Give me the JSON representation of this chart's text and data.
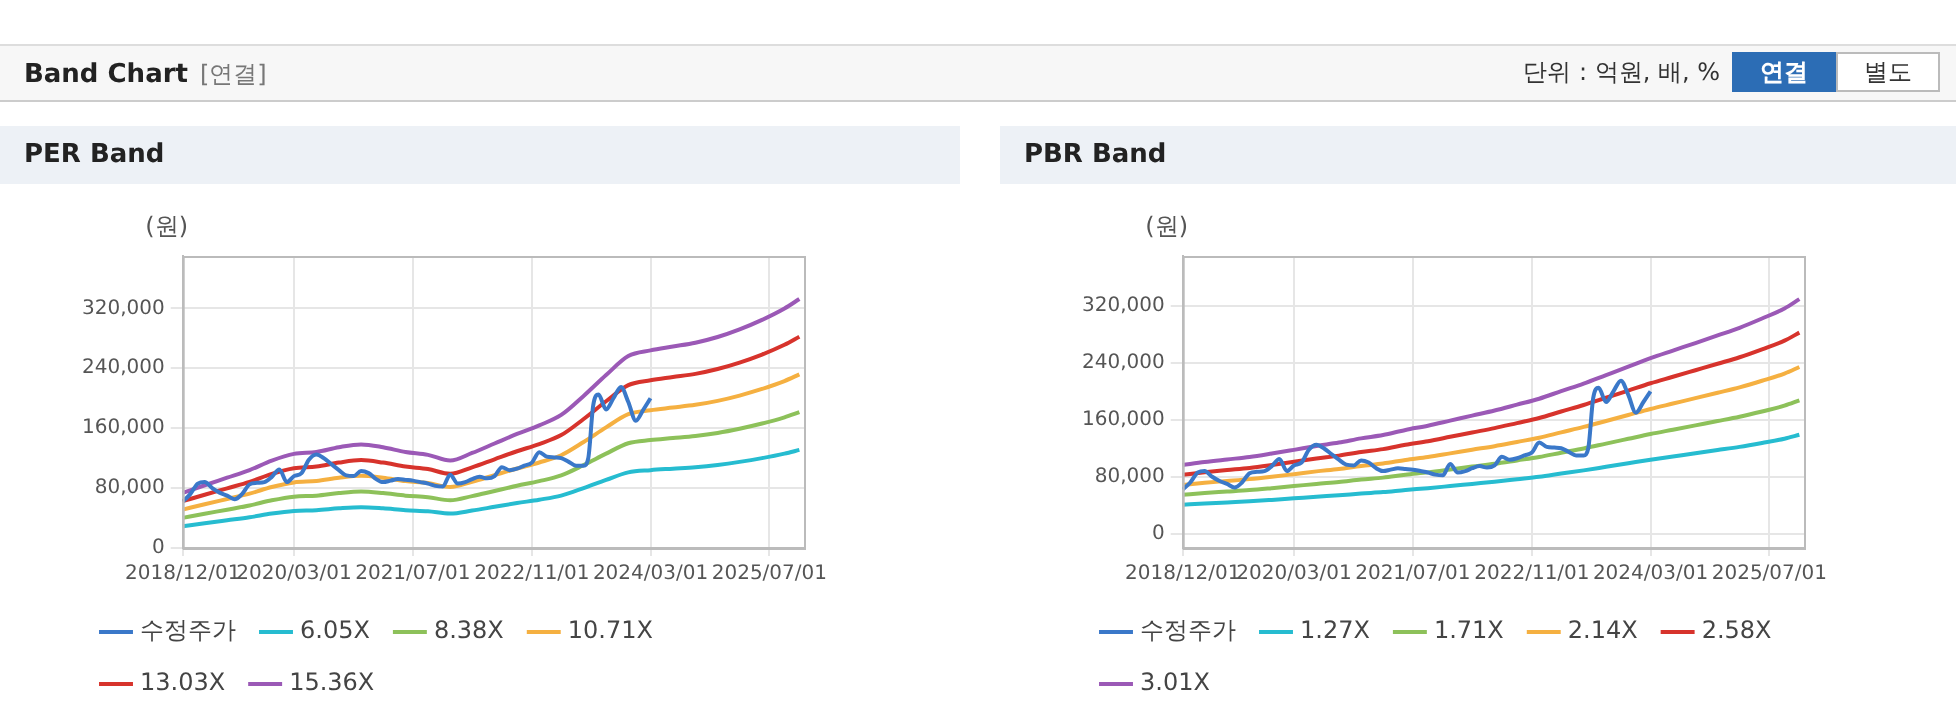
{
  "chart_data": [
    {
      "type": "other",
      "title": "Band Chart",
      "annotations": [
        "[연결]",
        "단위 : 억원, 배, %",
        "연결",
        "별도"
      ]
    },
    {
      "type": "line",
      "title": "PER Band",
      "ylabel": "(원)",
      "legend": "bottom",
      "grid": true,
      "x": [
        "2018-12-01",
        "2019-03-01",
        "2019-06-01",
        "2019-09-01",
        "2019-12-01",
        "2020-03-01",
        "2020-06-01",
        "2020-09-01",
        "2020-12-01",
        "2021-03-01",
        "2021-06-01",
        "2021-09-01",
        "2021-12-01",
        "2022-03-01",
        "2022-06-01",
        "2022-09-01",
        "2022-12-01",
        "2023-03-01",
        "2023-06-01",
        "2023-09-01",
        "2023-12-01",
        "2024-03-01",
        "2024-06-01",
        "2024-09-01",
        "2024-12-01",
        "2025-03-01",
        "2025-06-01",
        "2025-09-01",
        "2025-11-01"
      ],
      "xlim": [
        "2018-12-01",
        "2025-11-20"
      ],
      "xticks": [
        {
          "value": "2018-12-01",
          "label": "2018/12/01"
        },
        {
          "value": "2020-03-01",
          "label": "2020/03/01"
        },
        {
          "value": "2021-07-01",
          "label": "2021/07/01"
        },
        {
          "value": "2022-11-01",
          "label": "2022/11/01"
        },
        {
          "value": "2024-03-01",
          "label": "2024/03/01"
        },
        {
          "value": "2025-07-01",
          "label": "2025/07/01"
        }
      ],
      "ylim": [
        0,
        390000
      ],
      "yticks": [
        {
          "value": 0,
          "label": "0"
        },
        {
          "value": 80000,
          "label": "80,000"
        },
        {
          "value": 160000,
          "label": "160,000"
        },
        {
          "value": 240000,
          "label": "240,000"
        },
        {
          "value": 320000,
          "label": "320,000"
        }
      ],
      "series": [
        {
          "name": "수정주가",
          "color": "#3a78c9",
          "x": [
            "2018-12-01",
            "2019-01-01",
            "2019-02-01",
            "2019-03-01",
            "2019-04-01",
            "2019-05-01",
            "2019-06-01",
            "2019-07-01",
            "2019-08-01",
            "2019-09-01",
            "2019-10-01",
            "2019-11-01",
            "2019-12-01",
            "2020-01-01",
            "2020-02-01",
            "2020-03-01",
            "2020-04-01",
            "2020-05-01",
            "2020-06-01",
            "2020-07-01",
            "2020-08-01",
            "2020-09-01",
            "2020-10-01",
            "2020-11-01",
            "2020-12-01",
            "2021-01-01",
            "2021-02-01",
            "2021-03-01",
            "2021-04-01",
            "2021-05-01",
            "2021-06-01",
            "2021-07-01",
            "2021-08-01",
            "2021-09-01",
            "2021-10-01",
            "2021-11-01",
            "2021-12-01",
            "2022-01-01",
            "2022-02-01",
            "2022-03-01",
            "2022-04-01",
            "2022-05-01",
            "2022-06-01",
            "2022-07-01",
            "2022-08-01",
            "2022-09-01",
            "2022-10-01",
            "2022-11-01",
            "2022-12-01",
            "2023-01-01",
            "2023-02-01",
            "2023-03-01",
            "2023-04-01",
            "2023-05-01",
            "2023-06-01",
            "2023-06-20",
            "2023-07-10",
            "2023-08-01",
            "2023-09-01",
            "2023-10-01",
            "2023-11-01",
            "2023-12-01",
            "2024-01-01",
            "2024-02-01",
            "2024-03-01"
          ],
          "values": [
            62000,
            72000,
            86000,
            88000,
            80000,
            74000,
            70000,
            65000,
            72000,
            85000,
            87000,
            88000,
            95000,
            105000,
            88000,
            96000,
            100000,
            118000,
            125000,
            120000,
            112000,
            104000,
            97000,
            96000,
            103000,
            100000,
            92000,
            88000,
            90000,
            92000,
            91000,
            90000,
            88000,
            86000,
            83000,
            82000,
            98000,
            86000,
            88000,
            92000,
            95000,
            93000,
            96000,
            108000,
            104000,
            106000,
            110000,
            114000,
            128000,
            122000,
            121000,
            120000,
            115000,
            110000,
            110000,
            120000,
            190000,
            205000,
            185000,
            200000,
            215000,
            195000,
            170000,
            185000,
            200000
          ]
        },
        {
          "name": "6.05X",
          "color": "#26bcd0",
          "values": [
            29000,
            33000,
            37000,
            41000,
            46000,
            49500,
            50500,
            53000,
            54500,
            53000,
            50500,
            49000,
            46000,
            50000,
            55000,
            60000,
            64500,
            70000,
            80000,
            91000,
            101000,
            104000,
            106000,
            108000,
            111000,
            115000,
            120000,
            126000,
            131000
          ]
        },
        {
          "name": "8.38X",
          "color": "#8dc15a",
          "values": [
            40200,
            45700,
            51200,
            56800,
            63700,
            68600,
            69900,
            73400,
            75500,
            73400,
            69900,
            67900,
            63700,
            69300,
            76200,
            83100,
            89300,
            97000,
            110800,
            126000,
            139900,
            144100,
            146800,
            149600,
            153700,
            159300,
            166200,
            174500,
            181400
          ]
        },
        {
          "name": "10.71X",
          "color": "#f5b041",
          "values": [
            51300,
            58400,
            65500,
            72600,
            81400,
            87600,
            89400,
            93800,
            96500,
            93800,
            89400,
            86700,
            81400,
            88500,
            97400,
            106200,
            114200,
            123900,
            141600,
            161100,
            178800,
            184100,
            187600,
            191200,
            196500,
            203600,
            212400,
            223000,
            231900
          ]
        },
        {
          "name": "13.03X",
          "color": "#d7332c",
          "values": [
            62500,
            71100,
            79700,
            88300,
            99100,
            106600,
            108800,
            114100,
            117400,
            114100,
            108800,
            105500,
            99100,
            107700,
            118500,
            129200,
            138900,
            150800,
            172300,
            196000,
            217500,
            224000,
            228300,
            232600,
            239100,
            247700,
            258400,
            271400,
            282100
          ]
        },
        {
          "name": "15.36X",
          "color": "#9b59b6",
          "values": [
            73600,
            83800,
            93900,
            104100,
            116800,
            125700,
            128200,
            134600,
            138400,
            134600,
            128200,
            124400,
            116800,
            126900,
            139600,
            152300,
            163800,
            177700,
            203100,
            231000,
            256400,
            264000,
            269100,
            274200,
            281800,
            292000,
            304700,
            319900,
            332600
          ]
        }
      ]
    },
    {
      "type": "line",
      "title": "PBR Band",
      "ylabel": "(원)",
      "legend": "bottom",
      "grid": true,
      "x": [
        "2018-12-01",
        "2019-03-01",
        "2019-06-01",
        "2019-09-01",
        "2019-12-01",
        "2020-03-01",
        "2020-06-01",
        "2020-09-01",
        "2020-12-01",
        "2021-03-01",
        "2021-06-01",
        "2021-09-01",
        "2021-12-01",
        "2022-03-01",
        "2022-06-01",
        "2022-09-01",
        "2022-12-01",
        "2023-03-01",
        "2023-06-01",
        "2023-09-01",
        "2023-12-01",
        "2024-03-01",
        "2024-06-01",
        "2024-09-01",
        "2024-12-01",
        "2025-03-01",
        "2025-06-01",
        "2025-09-01",
        "2025-11-01"
      ],
      "xlim": [
        "2018-12-01",
        "2025-11-20"
      ],
      "xticks": [
        {
          "value": "2018-12-01",
          "label": "2018/12/01"
        },
        {
          "value": "2020-03-01",
          "label": "2020/03/01"
        },
        {
          "value": "2021-07-01",
          "label": "2021/07/01"
        },
        {
          "value": "2022-11-01",
          "label": "2022/11/01"
        },
        {
          "value": "2024-03-01",
          "label": "2024/03/01"
        },
        {
          "value": "2025-07-01",
          "label": "2025/07/01"
        }
      ],
      "ylim": [
        -20000,
        390000
      ],
      "yticks": [
        {
          "value": 0,
          "label": "0"
        },
        {
          "value": 80000,
          "label": "80,000"
        },
        {
          "value": 160000,
          "label": "160,000"
        },
        {
          "value": 240000,
          "label": "240,000"
        },
        {
          "value": 320000,
          "label": "320,000"
        }
      ],
      "series": [
        {
          "name": "수정주가",
          "color": "#3a78c9",
          "x": [
            "2018-12-01",
            "2019-01-01",
            "2019-02-01",
            "2019-03-01",
            "2019-04-01",
            "2019-05-01",
            "2019-06-01",
            "2019-07-01",
            "2019-08-01",
            "2019-09-01",
            "2019-10-01",
            "2019-11-01",
            "2019-12-01",
            "2020-01-01",
            "2020-02-01",
            "2020-03-01",
            "2020-04-01",
            "2020-05-01",
            "2020-06-01",
            "2020-07-01",
            "2020-08-01",
            "2020-09-01",
            "2020-10-01",
            "2020-11-01",
            "2020-12-01",
            "2021-01-01",
            "2021-02-01",
            "2021-03-01",
            "2021-04-01",
            "2021-05-01",
            "2021-06-01",
            "2021-07-01",
            "2021-08-01",
            "2021-09-01",
            "2021-10-01",
            "2021-11-01",
            "2021-12-01",
            "2022-01-01",
            "2022-02-01",
            "2022-03-01",
            "2022-04-01",
            "2022-05-01",
            "2022-06-01",
            "2022-07-01",
            "2022-08-01",
            "2022-09-01",
            "2022-10-01",
            "2022-11-01",
            "2022-12-01",
            "2023-01-01",
            "2023-02-01",
            "2023-03-01",
            "2023-04-01",
            "2023-05-01",
            "2023-06-01",
            "2023-06-20",
            "2023-07-10",
            "2023-08-01",
            "2023-09-01",
            "2023-10-01",
            "2023-11-01",
            "2023-12-01",
            "2024-01-01",
            "2024-02-01",
            "2024-03-01"
          ],
          "values": [
            62000,
            72000,
            86000,
            88000,
            80000,
            74000,
            70000,
            65000,
            72000,
            85000,
            87000,
            88000,
            95000,
            105000,
            88000,
            96000,
            100000,
            118000,
            125000,
            120000,
            112000,
            104000,
            97000,
            96000,
            103000,
            100000,
            92000,
            88000,
            90000,
            92000,
            91000,
            90000,
            88000,
            86000,
            83000,
            82000,
            98000,
            86000,
            88000,
            92000,
            95000,
            93000,
            96000,
            108000,
            104000,
            106000,
            110000,
            114000,
            128000,
            122000,
            121000,
            120000,
            115000,
            110000,
            110000,
            120000,
            190000,
            205000,
            185000,
            200000,
            215000,
            195000,
            170000,
            185000,
            200000
          ]
        },
        {
          "name": "1.27X",
          "color": "#26bcd0",
          "values": [
            40700,
            42500,
            44000,
            45500,
            47500,
            49700,
            52000,
            54000,
            56500,
            58500,
            61500,
            64000,
            67000,
            70000,
            73000,
            76500,
            80000,
            84500,
            89000,
            94000,
            99000,
            104000,
            108500,
            113000,
            117500,
            122000,
            127500,
            133500,
            139000
          ]
        },
        {
          "name": "1.71X",
          "color": "#8dc15a",
          "values": [
            54800,
            57200,
            59200,
            61300,
            64000,
            66900,
            70000,
            72700,
            76100,
            78800,
            82800,
            86200,
            90200,
            94300,
            98300,
            103000,
            107700,
            113800,
            119800,
            126600,
            133300,
            140000,
            146100,
            152200,
            158200,
            164300,
            171700,
            179800,
            187200
          ]
        },
        {
          "name": "2.14X",
          "color": "#f5b041",
          "values": [
            68600,
            71600,
            74100,
            76700,
            80000,
            83700,
            87600,
            91000,
            95200,
            98600,
            103600,
            107800,
            112900,
            118000,
            123000,
            128900,
            134800,
            142400,
            150000,
            158400,
            166800,
            175200,
            182800,
            190400,
            198000,
            205600,
            214800,
            225000,
            234200
          ]
        },
        {
          "name": "2.58X",
          "color": "#d7332c",
          "values": [
            82700,
            86300,
            89400,
            92400,
            96500,
            101000,
            105600,
            109700,
            114800,
            118800,
            124900,
            130000,
            136100,
            142200,
            148300,
            155400,
            162500,
            171700,
            180800,
            191000,
            201100,
            211300,
            220400,
            229600,
            238700,
            247800,
            259000,
            271200,
            282400
          ]
        },
        {
          "name": "3.01X",
          "color": "#9b59b6",
          "values": [
            96500,
            100700,
            104300,
            107800,
            112600,
            117800,
            123200,
            128000,
            133900,
            138700,
            145800,
            151700,
            158800,
            165900,
            173000,
            181300,
            189600,
            200300,
            210900,
            222800,
            234600,
            246500,
            257200,
            267800,
            278500,
            289200,
            302200,
            316400,
            329400
          ]
        }
      ]
    }
  ]
}
